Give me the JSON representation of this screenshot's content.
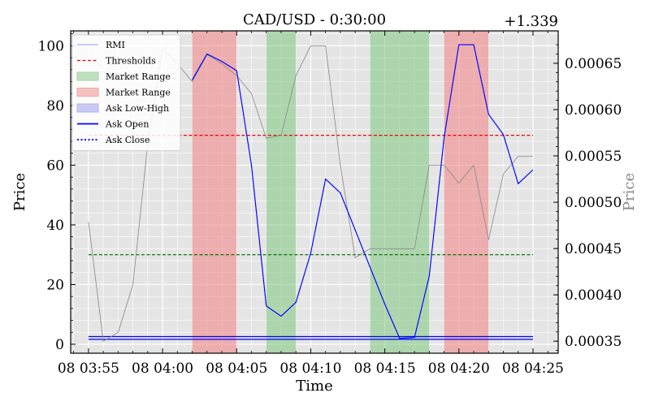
{
  "chart_data": {
    "type": "line",
    "title": "CAD/USD - 0:30:00",
    "xlabel": "Time",
    "ylabel": "Price",
    "ylabel_right": "Price",
    "right_offset_label": "+1.339",
    "x_ticks": [
      "08 03:55",
      "08 04:00",
      "08 04:05",
      "08 04:10",
      "08 04:15",
      "08 04:20",
      "08 04:25"
    ],
    "x_tick_minutes": [
      0,
      5,
      10,
      15,
      20,
      25,
      30
    ],
    "xlim": [
      -1.2,
      31.7
    ],
    "ylim": [
      -3,
      105
    ],
    "y_ticks": [
      0,
      20,
      40,
      60,
      80,
      100
    ],
    "ylim_right": [
      0.000337,
      0.000685
    ],
    "y_ticks_right": [
      "0.00035",
      "0.00040",
      "0.00045",
      "0.00050",
      "0.00055",
      "0.00060",
      "0.00065"
    ],
    "y_tick_values_right": [
      0.00035,
      0.0004,
      0.00045,
      0.0005,
      0.00055,
      0.0006,
      0.00065
    ],
    "grid": true,
    "legend_position": "top-left",
    "legend": [
      {
        "label": "RMI",
        "kind": "line",
        "color": "#aaaaee"
      },
      {
        "label": "Thresholds",
        "kind": "dashed",
        "color": "#ee0000"
      },
      {
        "label": "Market Range",
        "kind": "patch",
        "color": "#a6d4a6"
      },
      {
        "label": "Market Range",
        "kind": "patch",
        "color": "#f4a6a6"
      },
      {
        "label": "Ask Low-High",
        "kind": "patch",
        "color": "#b3b3f0"
      },
      {
        "label": "Ask Open",
        "kind": "line",
        "color": "#0000ff"
      },
      {
        "label": "Ask Close",
        "kind": "dotted",
        "color": "#0000ff"
      }
    ],
    "shaded_regions": [
      {
        "start": 7,
        "end": 10,
        "color": "#f08080"
      },
      {
        "start": 12,
        "end": 14,
        "color": "#7fc97f"
      },
      {
        "start": 19,
        "end": 23,
        "color": "#7fc97f"
      },
      {
        "start": 24,
        "end": 27,
        "color": "#f08080"
      }
    ],
    "thresholds": [
      {
        "value": 70,
        "color": "#ee0000"
      },
      {
        "value": 30,
        "color": "#006400"
      }
    ],
    "rmi_series": {
      "x": [
        0,
        1,
        2,
        3,
        4,
        5,
        6,
        7,
        8,
        9,
        10,
        11,
        12,
        13,
        14,
        15,
        16,
        17,
        18,
        19,
        20,
        21,
        22,
        23,
        24,
        25,
        26,
        27,
        28,
        29,
        30
      ],
      "values": [
        41,
        1,
        4,
        20,
        67,
        99,
        94,
        88,
        97,
        94,
        90,
        84,
        69,
        70,
        90,
        100,
        100,
        60,
        29,
        32,
        32,
        32,
        32,
        60,
        60,
        54,
        60,
        35,
        57,
        63,
        63
      ],
      "color": "#888888"
    },
    "ask_series": {
      "x": [
        7,
        8,
        9,
        10,
        11,
        12,
        13,
        14,
        15,
        16,
        17,
        18,
        19,
        20,
        21,
        22,
        23,
        24,
        25,
        26,
        27,
        28,
        29,
        30
      ],
      "values": [
        0.000632,
        0.00066,
        0.000652,
        0.000642,
        0.00054,
        0.000388,
        0.000377,
        0.000392,
        0.000445,
        0.000525,
        0.00051,
        0.00047,
        0.00043,
        0.00039,
        0.000353,
        0.000354,
        0.00042,
        0.00057,
        0.00067,
        0.00067,
        0.000595,
        0.000573,
        0.00052,
        0.000535
      ],
      "color": "#0000ff"
    },
    "low_high_band": {
      "low": 0.000352,
      "high": 0.000355,
      "x_start": 0,
      "x_end": 30,
      "color": "#0000ff"
    }
  }
}
